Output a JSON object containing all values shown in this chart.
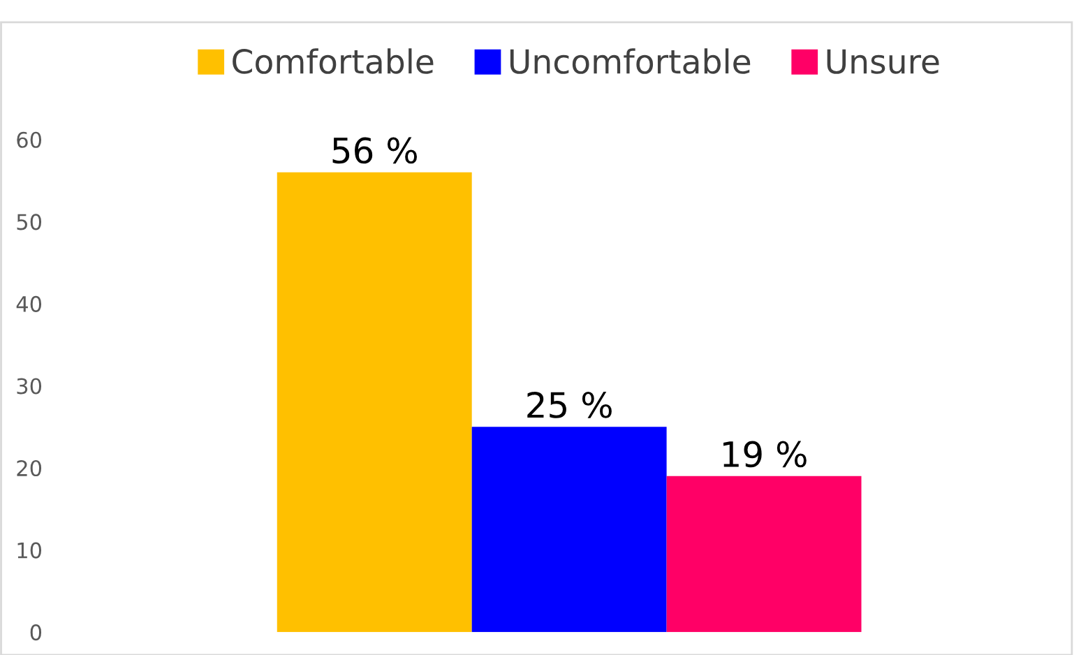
{
  "chart_data": {
    "type": "bar",
    "categories": [
      null
    ],
    "series": [
      {
        "name": "Comfortable",
        "color": "#ffc000",
        "values": [
          56
        ],
        "value_labels": [
          "56 %"
        ]
      },
      {
        "name": "Uncomfortable",
        "color": "#0000ff",
        "values": [
          25
        ],
        "value_labels": [
          "25 %"
        ]
      },
      {
        "name": "Unsure",
        "color": "#ff0066",
        "values": [
          19
        ],
        "value_labels": [
          "19 %"
        ]
      }
    ],
    "ylim": [
      0,
      60
    ],
    "yticks": [
      0,
      10,
      20,
      30,
      40,
      50,
      60
    ],
    "grid": false,
    "legend": "top",
    "tick_labels": "y"
  }
}
